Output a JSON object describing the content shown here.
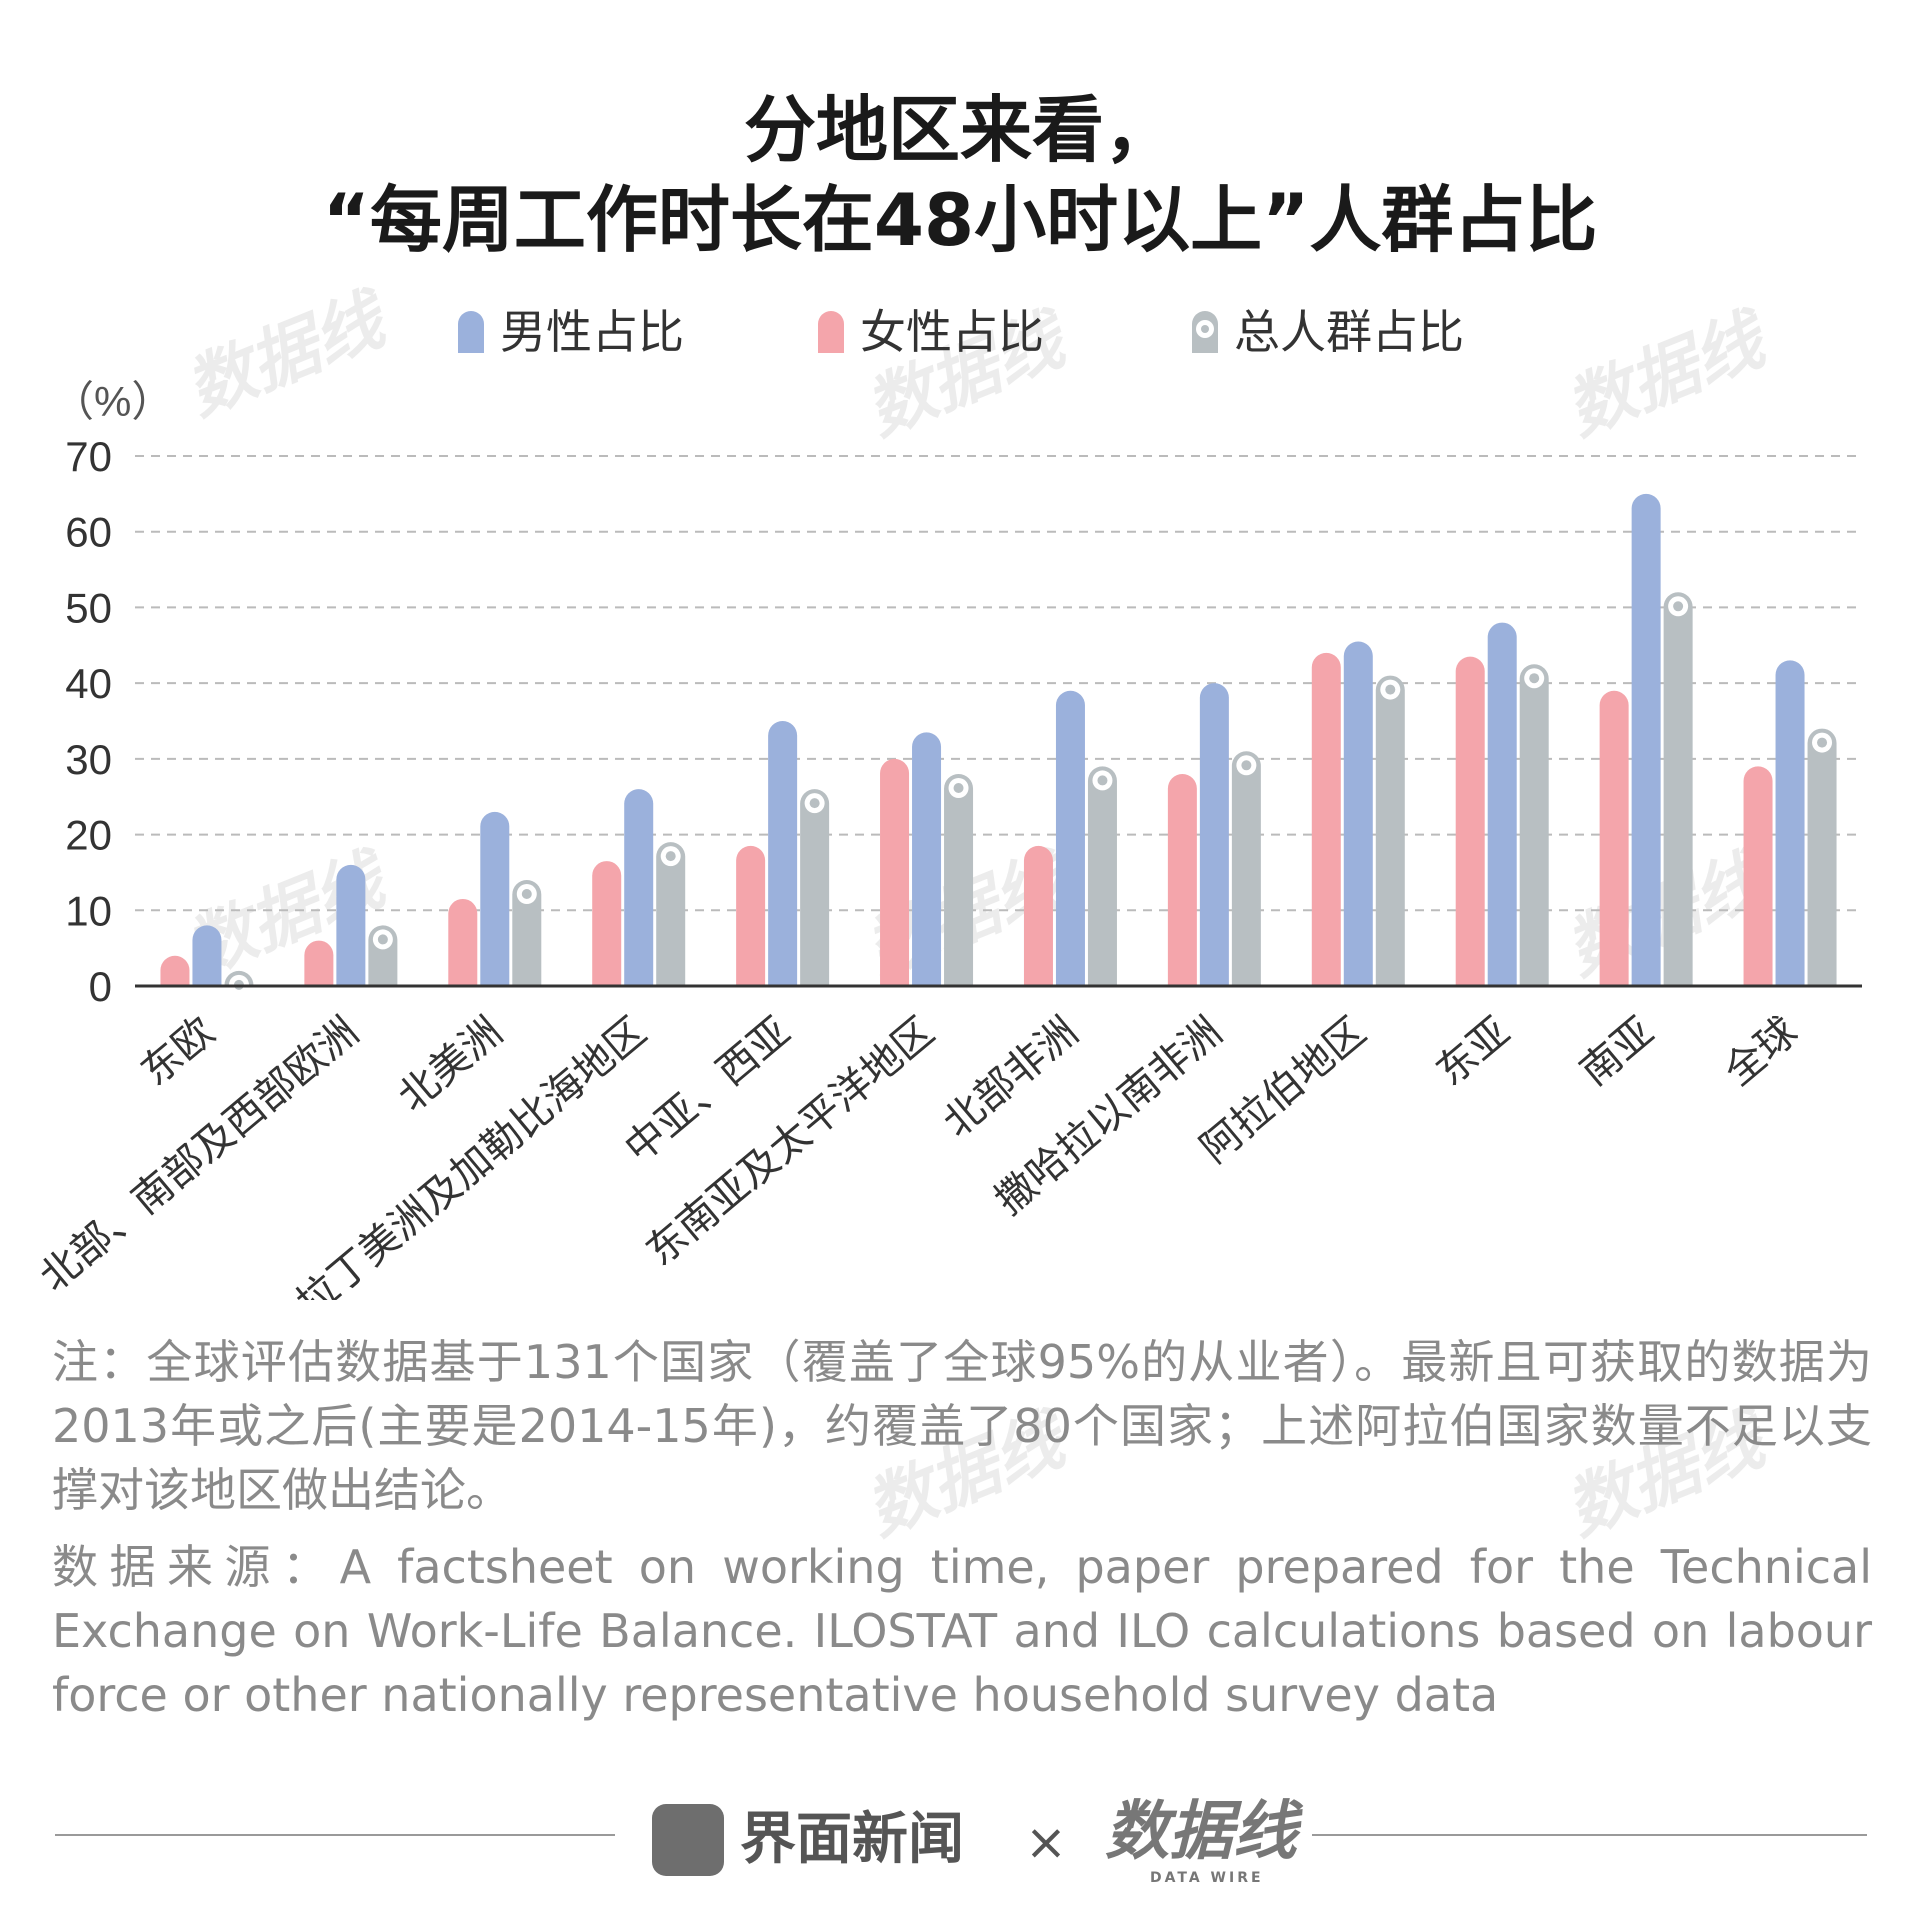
{
  "title_line1": "分地区来看，",
  "title_line2": "“每周工作时长在48小时以上”人群占比",
  "watermark_text": "数据线",
  "colors": {
    "male": "#9bb1dc",
    "female": "#f4a5ab",
    "total": "#b8bfc2",
    "axis": "#333333",
    "grid": "#bbbbbb"
  },
  "chart_data": {
    "type": "bar",
    "ylabel": "（%）",
    "ylim": [
      0,
      70
    ],
    "yticks": [
      0,
      10,
      20,
      30,
      40,
      50,
      60,
      70
    ],
    "grid": "dashed horizontal",
    "legend_position": "top",
    "categories": [
      "东欧",
      "北部、南部及西部欧洲",
      "北美洲",
      "拉丁美洲及加勒比海地区",
      "中亚、西亚",
      "东南亚及太平洋地区",
      "北部非洲",
      "撒哈拉以南非洲",
      "阿拉伯地区",
      "东亚",
      "南亚",
      "全球"
    ],
    "series": [
      {
        "name": "女性占比",
        "color": "#f4a5ab",
        "values": [
          4,
          6,
          11.5,
          16.5,
          18.5,
          30,
          18.5,
          28,
          44,
          43.5,
          39,
          29
        ]
      },
      {
        "name": "男性占比",
        "color": "#9bb1dc",
        "values": [
          8,
          16,
          23,
          26,
          35,
          33.5,
          39,
          40,
          45.5,
          48,
          65,
          43
        ]
      },
      {
        "name": "总人群占比",
        "color": "#b8bfc2",
        "values": [
          2,
          8,
          14,
          19,
          26,
          28,
          29,
          31,
          41,
          42.5,
          52,
          34
        ]
      }
    ],
    "legend_order": [
      "男性占比",
      "女性占比",
      "总人群占比"
    ]
  },
  "note": "注：全球评估数据基于131个国家（覆盖了全球95%的从业者）。最新且可获取的数据为2013年或之后(主要是2014-15年)，约覆盖了80个国家；上述阿拉伯国家数量不足以支撑对该地区做出结论。",
  "source": "数据来源：A factsheet on working time, paper prepared for the Technical Exchange on Work‑Life Balance. ILOSTAT and ILO calculations based on labour force or other nationally representative household survey data",
  "footer": {
    "brand": "界面新闻",
    "times": "×",
    "partner": "数据线",
    "partner_sub": "DATA WIRE"
  }
}
